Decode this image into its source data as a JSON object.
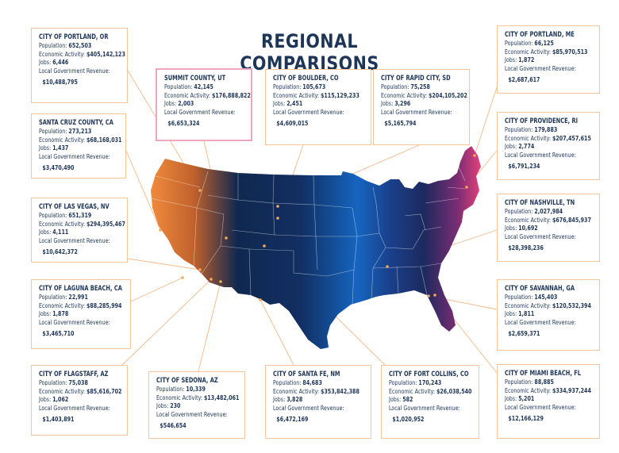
{
  "title": "REGIONAL COMPARISONS",
  "labels": {
    "population": "Population:",
    "economic_activity": "Economic Activity:",
    "jobs": "Jobs:",
    "revenue": "Local Government Revenue:"
  },
  "colors": {
    "title": "#1d3557",
    "card_border": "#f2c59b",
    "highlight_border": "#f0a6bd",
    "leader_line": "#f4b98a",
    "marker": "#f4a95b",
    "map_west": "#f08a3c",
    "map_center": "#0f2a55",
    "map_mid": "#1565c0",
    "map_east": "#f0447b"
  },
  "cards": [
    {
      "id": "portland-or",
      "name": "CITY OF PORTLAND, OR",
      "population": "652,503",
      "economic": "$405,142,123",
      "jobs": "6,446",
      "revenue": "$10,488,795"
    },
    {
      "id": "santa-cruz",
      "name": "SANTA CRUZ COUNTY, CA",
      "population": "273,213",
      "economic": "$68,168,031",
      "jobs": "1,437",
      "revenue": "$3,470,490"
    },
    {
      "id": "las-vegas",
      "name": "CITY OF LAS VEGAS, NV",
      "population": "651,319",
      "economic": "$294,395,467",
      "jobs": "4,111",
      "revenue": "$10,642,372"
    },
    {
      "id": "laguna-beach",
      "name": "CITY OF LAGUNA BEACH, CA",
      "population": "22,991",
      "economic": "$88,285,994",
      "jobs": "1,878",
      "revenue": "$3,465,710"
    },
    {
      "id": "flagstaff",
      "name": "CITY OF FLAGSTAFF, AZ",
      "population": "75,038",
      "economic": "$85,616,702",
      "jobs": "1,062",
      "revenue": "$1,403,891"
    },
    {
      "id": "sedona",
      "name": "CITY OF SEDONA, AZ",
      "population": "10,339",
      "economic": "$13,482,061",
      "jobs": "230",
      "revenue": "$546,654"
    },
    {
      "id": "santa-fe",
      "name": "CITY OF SANTA FE, NM",
      "population": "84,683",
      "economic": "$353,842,388",
      "jobs": "3,828",
      "revenue": "$6,472,169"
    },
    {
      "id": "fort-collins",
      "name": "CITY OF FORT COLLINS, CO",
      "population": "170,243",
      "economic": "$26,038,540",
      "jobs": "582",
      "revenue": "$1,020,952"
    },
    {
      "id": "miami-beach",
      "name": "CITY OF MIAMI BEACH, FL",
      "population": "88,885",
      "economic": "$334,937,244",
      "jobs": "5,201",
      "revenue": "$12,166,129"
    },
    {
      "id": "savannah",
      "name": "CITY OF SAVANNAH, GA",
      "population": "145,403",
      "economic": "$120,532,394",
      "jobs": "1,811",
      "revenue": "$2,659,371"
    },
    {
      "id": "nashville",
      "name": "CITY OF NASHVILLE, TN",
      "population": "2,027,984",
      "economic": "$676,845,937",
      "jobs": "10,692",
      "revenue": "$28,398,236"
    },
    {
      "id": "providence",
      "name": "CITY OF PROVIDENCE, RI",
      "population": "179,883",
      "economic": "$207,457,615",
      "jobs": "2,774",
      "revenue": "$6,791,234"
    },
    {
      "id": "portland-me",
      "name": "CITY OF PORTLAND, ME",
      "population": "66,125",
      "economic": "$85,970,513",
      "jobs": "1,872",
      "revenue": "$2,687,617"
    },
    {
      "id": "summit-county",
      "name": "SUMMIT COUNTY, UT",
      "population": "42,145",
      "economic": "$176,888,822",
      "jobs": "2,003",
      "revenue": "$6,653,324",
      "highlight": true
    },
    {
      "id": "boulder",
      "name": "CITY OF BOULDER, CO",
      "population": "105,673",
      "economic": "$115,129,233",
      "jobs": "2,451",
      "revenue": "$4,609,015"
    },
    {
      "id": "rapid-city",
      "name": "CITY OF RAPID CITY, SD",
      "population": "75,258",
      "economic": "$204,105,202",
      "jobs": "3,296",
      "revenue": "$5,165,794"
    }
  ]
}
